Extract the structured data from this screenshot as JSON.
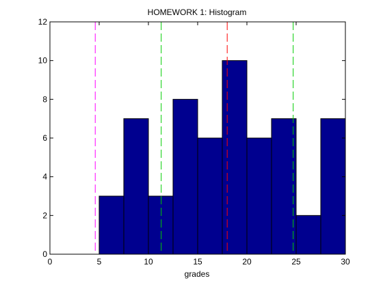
{
  "chart_data": {
    "type": "bar",
    "title": "HOMEWORK 1: Histogram",
    "xlabel": "grades",
    "ylabel": "",
    "xlim": [
      0,
      30
    ],
    "ylim": [
      0,
      12
    ],
    "xticks": [
      0,
      5,
      10,
      15,
      20,
      25,
      30
    ],
    "yticks": [
      0,
      2,
      4,
      6,
      8,
      10,
      12
    ],
    "xtick_labels": [
      "0",
      "5",
      "10",
      "15",
      "20",
      "25",
      "30"
    ],
    "ytick_labels": [
      "0",
      "2",
      "4",
      "6",
      "8",
      "10",
      "12"
    ],
    "bin_edges": [
      5,
      7.5,
      10,
      12.5,
      15,
      17.5,
      20,
      22.5,
      25,
      27.5,
      30
    ],
    "values": [
      3,
      7,
      3,
      8,
      6,
      10,
      6,
      7,
      2,
      7
    ],
    "bar_color": "#00008f",
    "grid": false,
    "reference_lines": [
      {
        "x": 4.6,
        "color": "#ff00ff",
        "style": "dashed"
      },
      {
        "x": 11.3,
        "color": "#00cc00",
        "style": "dashed"
      },
      {
        "x": 18.0,
        "color": "#ff0000",
        "style": "dashed"
      },
      {
        "x": 24.7,
        "color": "#00cc00",
        "style": "dashed"
      }
    ]
  }
}
